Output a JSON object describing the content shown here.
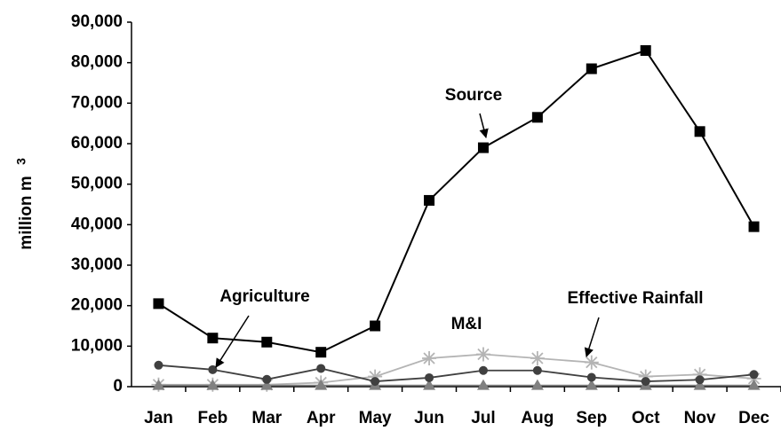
{
  "chart_data": {
    "type": "line",
    "ylabel": "million m",
    "ylabel_sup": "3",
    "categories": [
      "Jan",
      "Feb",
      "Mar",
      "Apr",
      "May",
      "Jun",
      "Jul",
      "Aug",
      "Sep",
      "Oct",
      "Nov",
      "Dec"
    ],
    "series": [
      {
        "name": "Source",
        "color": "#000000",
        "marker": "square",
        "values": [
          20500,
          12000,
          11000,
          8500,
          15000,
          46000,
          59000,
          66500,
          78500,
          83000,
          63000,
          39500
        ]
      },
      {
        "name": "Agriculture",
        "color": "#404040",
        "marker": "circle",
        "values": [
          5300,
          4200,
          1800,
          4500,
          1300,
          2200,
          4000,
          4000,
          2300,
          1300,
          1700,
          3000
        ]
      },
      {
        "name": "M&I",
        "color": "#808080",
        "marker": "triangle",
        "values": [
          300,
          300,
          300,
          300,
          300,
          300,
          300,
          300,
          300,
          300,
          300,
          300
        ]
      },
      {
        "name": "Effective Rainfall",
        "color": "#b4b4b4",
        "marker": "star",
        "values": [
          500,
          500,
          500,
          1000,
          2500,
          7000,
          8000,
          7000,
          6000,
          2500,
          3000,
          2000
        ]
      }
    ],
    "ylim": [
      0,
      90000
    ],
    "yticks": [
      0,
      {
        "value": 10000,
        "label": "10,000"
      },
      {
        "value": 20000,
        "label": "20,000"
      },
      {
        "value": 30000,
        "label": "30,000"
      },
      {
        "value": 40000,
        "label": "40,000"
      },
      {
        "value": 50000,
        "label": "50,000"
      },
      {
        "value": 60000,
        "label": "60,000"
      },
      {
        "value": 70000,
        "label": "70,000"
      },
      {
        "value": 80000,
        "label": "80,000"
      },
      {
        "value": 90000,
        "label": "90,000"
      }
    ],
    "grid": false
  }
}
